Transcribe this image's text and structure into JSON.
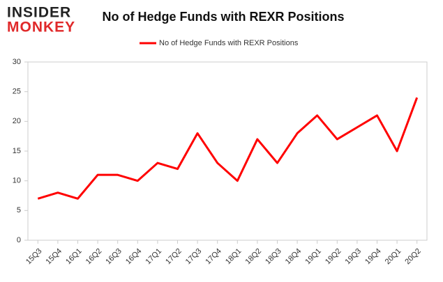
{
  "logo": {
    "top": "INSIDER",
    "bottom": "MONKEY"
  },
  "chart_data": {
    "type": "line",
    "title": "No of Hedge Funds with REXR Positions",
    "categories": [
      "15Q3",
      "15Q4",
      "16Q1",
      "16Q2",
      "16Q3",
      "16Q4",
      "17Q1",
      "17Q2",
      "17Q3",
      "17Q4",
      "18Q1",
      "18Q2",
      "18Q3",
      "18Q4",
      "19Q1",
      "19Q2",
      "19Q3",
      "19Q4",
      "20Q1",
      "20Q2"
    ],
    "series": [
      {
        "name": "No of Hedge Funds with REXR Positions",
        "color": "#ff0000",
        "values": [
          7,
          8,
          7,
          11,
          11,
          10,
          13,
          12,
          18,
          13,
          10,
          17,
          13,
          18,
          21,
          17,
          19,
          21,
          15,
          24
        ]
      }
    ],
    "ylim": [
      0,
      30
    ],
    "yticks": [
      0,
      5,
      10,
      15,
      20,
      25,
      30
    ],
    "grid": false,
    "legend": "top"
  }
}
